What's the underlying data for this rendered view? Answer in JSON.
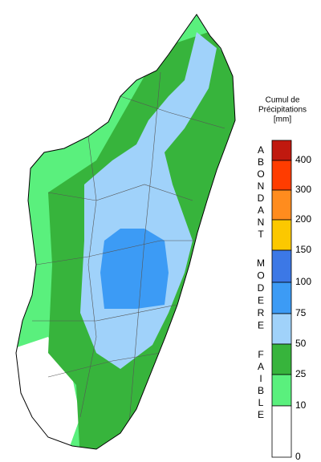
{
  "legend": {
    "title": [
      "Cumul de",
      "Précipitations",
      "[mm]"
    ],
    "colors": [
      "#c0190f",
      "#ff3c00",
      "#ff8c1e",
      "#fcc800",
      "#3c78e6",
      "#3c9bf5",
      "#a0d2fa",
      "#37b43c",
      "#5af07d",
      "#ffffff"
    ],
    "ticks": [
      400,
      300,
      200,
      150,
      100,
      75,
      50,
      25,
      10,
      0
    ],
    "groups": [
      {
        "letters": [
          "A",
          "B",
          "O",
          "N",
          "D",
          "A",
          "N",
          "T"
        ]
      },
      {
        "letters": [
          "M",
          "O",
          "D",
          "E",
          "R",
          "E"
        ]
      },
      {
        "letters": [
          "F",
          "A",
          "I",
          "B",
          "L",
          "E"
        ]
      }
    ]
  }
}
